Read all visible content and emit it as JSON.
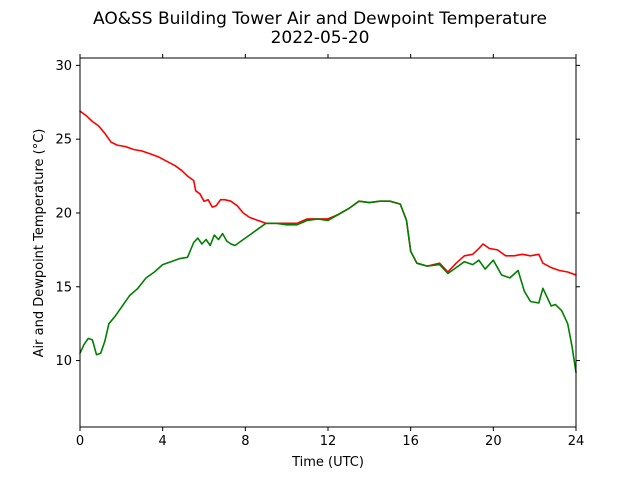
{
  "chart_data": {
    "type": "line",
    "title": "AO&SS Building Tower Air and Dewpoint Temperature",
    "subtitle": "2022-05-20",
    "xlabel": "Time (UTC)",
    "ylabel": "Air and Dewpoint Temperature (°C)",
    "xlim": [
      0,
      24
    ],
    "ylim": [
      5.5,
      30.5
    ],
    "xticks": [
      0,
      4,
      8,
      12,
      16,
      20,
      24
    ],
    "yticks": [
      10,
      15,
      20,
      25,
      30
    ],
    "grid": false,
    "series": [
      {
        "color": "#ff0000",
        "x": [
          0,
          0.3,
          0.6,
          0.9,
          1.2,
          1.5,
          1.8,
          2.2,
          2.6,
          3.0,
          3.4,
          3.8,
          4.2,
          4.6,
          4.9,
          5.2,
          5.5,
          5.6,
          5.8,
          6.0,
          6.2,
          6.4,
          6.6,
          6.8,
          7.0,
          7.3,
          7.6,
          7.9,
          8.2,
          8.6,
          9.0,
          9.5,
          10.0,
          10.5,
          11.0,
          11.5,
          12.0,
          12.5,
          13.0,
          13.5,
          14.0,
          14.5,
          15.0,
          15.5,
          15.8,
          16.0,
          16.3,
          16.8,
          17.4,
          17.8,
          18.2,
          18.6,
          19.0,
          19.3,
          19.5,
          19.8,
          20.2,
          20.6,
          21.0,
          21.4,
          21.8,
          22.2,
          22.4,
          22.8,
          23.2,
          23.6,
          24.0
        ],
        "y": [
          26.9,
          26.6,
          26.2,
          25.9,
          25.4,
          24.8,
          24.6,
          24.5,
          24.3,
          24.2,
          24.0,
          23.8,
          23.5,
          23.2,
          22.9,
          22.5,
          22.2,
          21.5,
          21.3,
          20.8,
          20.9,
          20.4,
          20.5,
          20.9,
          20.9,
          20.8,
          20.5,
          20.0,
          19.7,
          19.5,
          19.3,
          19.3,
          19.3,
          19.3,
          19.6,
          19.6,
          19.6,
          19.9,
          20.3,
          20.8,
          20.7,
          20.8,
          20.8,
          20.6,
          19.5,
          17.4,
          16.6,
          16.4,
          16.6,
          16.0,
          16.6,
          17.1,
          17.2,
          17.6,
          17.9,
          17.6,
          17.5,
          17.1,
          17.1,
          17.2,
          17.1,
          17.2,
          16.6,
          16.3,
          16.1,
          16.0,
          15.8
        ]
      },
      {
        "color": "#008000",
        "x": [
          0,
          0.2,
          0.4,
          0.6,
          0.8,
          1.0,
          1.2,
          1.4,
          1.7,
          2.0,
          2.4,
          2.8,
          3.2,
          3.6,
          4.0,
          4.4,
          4.8,
          5.2,
          5.5,
          5.7,
          5.9,
          6.1,
          6.3,
          6.5,
          6.7,
          6.9,
          7.1,
          7.3,
          7.5,
          7.8,
          8.2,
          8.6,
          9.0,
          9.5,
          10.0,
          10.5,
          11.0,
          11.5,
          12.0,
          12.5,
          13.0,
          13.5,
          14.0,
          14.5,
          15.0,
          15.5,
          15.8,
          16.0,
          16.3,
          16.8,
          17.4,
          17.8,
          18.2,
          18.6,
          19.0,
          19.3,
          19.6,
          20.0,
          20.4,
          20.8,
          21.2,
          21.5,
          21.8,
          22.2,
          22.4,
          22.8,
          23.0,
          23.3,
          23.6,
          23.8,
          24.0
        ],
        "y": [
          10.5,
          11.1,
          11.5,
          11.4,
          10.4,
          10.5,
          11.3,
          12.5,
          13.0,
          13.6,
          14.4,
          14.9,
          15.6,
          16.0,
          16.5,
          16.7,
          16.9,
          17.0,
          18.0,
          18.3,
          17.9,
          18.2,
          17.8,
          18.5,
          18.2,
          18.6,
          18.1,
          17.9,
          17.8,
          18.1,
          18.5,
          18.9,
          19.3,
          19.3,
          19.2,
          19.2,
          19.5,
          19.6,
          19.5,
          19.9,
          20.3,
          20.8,
          20.7,
          20.8,
          20.8,
          20.6,
          19.5,
          17.4,
          16.6,
          16.4,
          16.5,
          15.9,
          16.3,
          16.7,
          16.5,
          16.8,
          16.2,
          16.8,
          15.8,
          15.6,
          16.1,
          14.7,
          14.0,
          13.9,
          14.9,
          13.7,
          13.8,
          13.4,
          12.5,
          11.0,
          9.2
        ]
      }
    ]
  }
}
